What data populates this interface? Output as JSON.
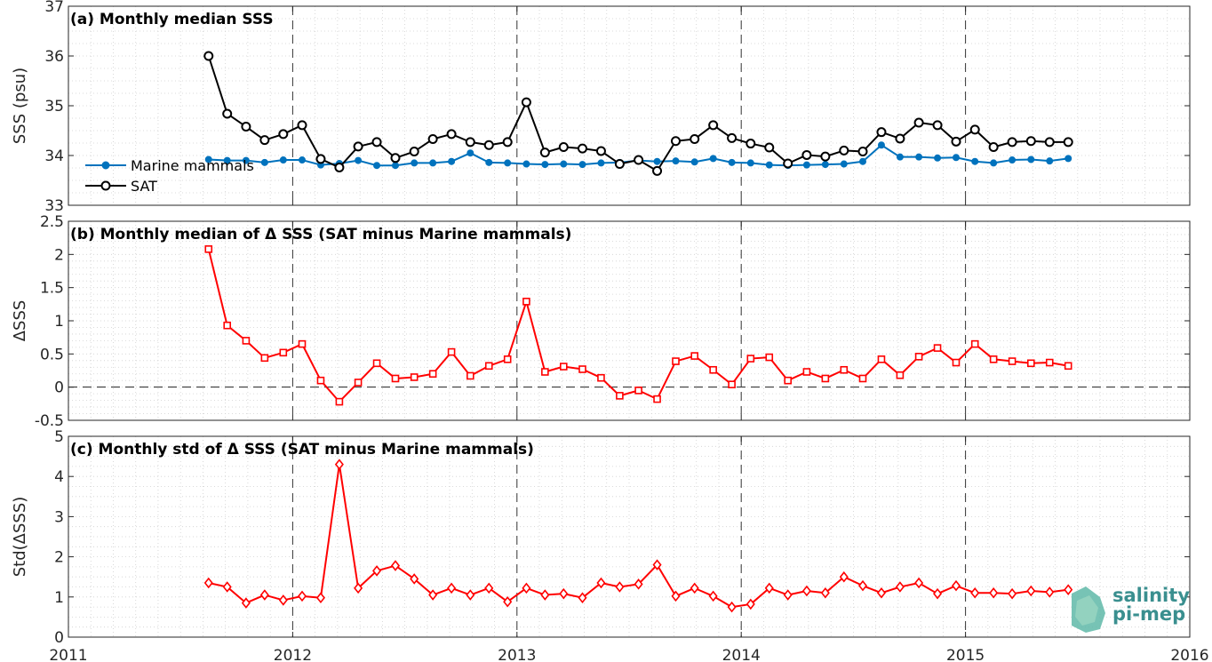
{
  "colors": {
    "marine": "#0072BD",
    "sat": "#000000",
    "delta": "#FF0000",
    "logo": "#3a8f8f"
  },
  "logo": {
    "line1": "salinity",
    "line2": "pi-mep"
  },
  "chart_data": [
    {
      "type": "line",
      "title": "(a) Monthly median SSS",
      "ylabel": "SSS (psu)",
      "xlim": [
        2011,
        2016
      ],
      "ylim": [
        33,
        37
      ],
      "xticks": [
        "2011",
        "2012",
        "2013",
        "2014",
        "2015",
        "2016"
      ],
      "yticks": [
        "33",
        "34",
        "35",
        "36",
        "37"
      ],
      "legend": "top-left",
      "grid": "dotted minor",
      "series": [
        {
          "name": "Marine mammals",
          "marker": "dot",
          "color": "#0072BD",
          "x": [
            2011.625,
            2011.708,
            2011.792,
            2011.875,
            2011.958,
            2012.042,
            2012.125,
            2012.208,
            2012.292,
            2012.375,
            2012.458,
            2012.542,
            2012.625,
            2012.708,
            2012.792,
            2012.875,
            2012.958,
            2013.042,
            2013.125,
            2013.208,
            2013.292,
            2013.375,
            2013.458,
            2013.542,
            2013.625,
            2013.708,
            2013.792,
            2013.875,
            2013.958,
            2014.042,
            2014.125,
            2014.208,
            2014.292,
            2014.375,
            2014.458,
            2014.542,
            2014.625,
            2014.708,
            2014.792,
            2014.875,
            2014.958,
            2015.042,
            2015.125,
            2015.208,
            2015.292,
            2015.375,
            2015.458
          ],
          "values": [
            33.92,
            33.9,
            33.9,
            33.86,
            33.91,
            33.91,
            33.81,
            33.84,
            33.9,
            33.8,
            33.8,
            33.85,
            33.85,
            33.88,
            34.05,
            33.86,
            33.85,
            33.83,
            33.82,
            33.83,
            33.82,
            33.85,
            33.86,
            33.9,
            33.88,
            33.89,
            33.87,
            33.94,
            33.86,
            33.85,
            33.81,
            33.8,
            33.81,
            33.82,
            33.83,
            33.88,
            34.21,
            33.97,
            33.97,
            33.95,
            33.96,
            33.88,
            33.85,
            33.91,
            33.92,
            33.89,
            33.94
          ]
        },
        {
          "name": "SAT",
          "marker": "circle",
          "color": "#000000",
          "x": [
            2011.625,
            2011.708,
            2011.792,
            2011.875,
            2011.958,
            2012.042,
            2012.125,
            2012.208,
            2012.292,
            2012.375,
            2012.458,
            2012.542,
            2012.625,
            2012.708,
            2012.792,
            2012.875,
            2012.958,
            2013.042,
            2013.125,
            2013.208,
            2013.292,
            2013.375,
            2013.458,
            2013.542,
            2013.625,
            2013.708,
            2013.792,
            2013.875,
            2013.958,
            2014.042,
            2014.125,
            2014.208,
            2014.292,
            2014.375,
            2014.458,
            2014.542,
            2014.625,
            2014.708,
            2014.792,
            2014.875,
            2014.958,
            2015.042,
            2015.125,
            2015.208,
            2015.292,
            2015.375,
            2015.458
          ],
          "values": [
            36.0,
            34.84,
            34.58,
            34.31,
            34.43,
            34.61,
            33.93,
            33.76,
            34.18,
            34.27,
            33.95,
            34.08,
            34.33,
            34.43,
            34.27,
            34.21,
            34.27,
            35.07,
            34.06,
            34.17,
            34.14,
            34.09,
            33.83,
            33.91,
            33.69,
            34.29,
            34.33,
            34.61,
            34.35,
            34.24,
            34.16,
            33.84,
            34.01,
            33.98,
            34.1,
            34.08,
            34.47,
            34.34,
            34.66,
            34.61,
            34.28,
            34.52,
            34.17,
            34.27,
            34.29,
            34.27,
            34.27
          ]
        }
      ]
    },
    {
      "type": "line",
      "title": "(b) Monthly median of Δ SSS (SAT minus Marine mammals)",
      "ylabel": "ΔSSS",
      "xlim": [
        2011,
        2016
      ],
      "ylim": [
        -0.5,
        2.5
      ],
      "xticks": [
        "2011",
        "2012",
        "2013",
        "2014",
        "2015",
        "2016"
      ],
      "yticks": [
        "-0.5",
        "0",
        "0.5",
        "1",
        "1.5",
        "2",
        "2.5"
      ],
      "reference_line": 0,
      "series": [
        {
          "marker": "square",
          "color": "#FF0000",
          "x": [
            2011.625,
            2011.708,
            2011.792,
            2011.875,
            2011.958,
            2012.042,
            2012.125,
            2012.208,
            2012.292,
            2012.375,
            2012.458,
            2012.542,
            2012.625,
            2012.708,
            2012.792,
            2012.875,
            2012.958,
            2013.042,
            2013.125,
            2013.208,
            2013.292,
            2013.375,
            2013.458,
            2013.542,
            2013.625,
            2013.708,
            2013.792,
            2013.875,
            2013.958,
            2014.042,
            2014.125,
            2014.208,
            2014.292,
            2014.375,
            2014.458,
            2014.542,
            2014.625,
            2014.708,
            2014.792,
            2014.875,
            2014.958,
            2015.042,
            2015.125,
            2015.208,
            2015.292,
            2015.375,
            2015.458
          ],
          "values": [
            2.08,
            0.93,
            0.7,
            0.44,
            0.52,
            0.65,
            0.1,
            -0.22,
            0.07,
            0.36,
            0.13,
            0.15,
            0.2,
            0.53,
            0.17,
            0.32,
            0.42,
            1.29,
            0.23,
            0.31,
            0.27,
            0.14,
            -0.13,
            -0.05,
            -0.18,
            0.39,
            0.47,
            0.26,
            0.04,
            0.43,
            0.45,
            0.1,
            0.23,
            0.13,
            0.26,
            0.13,
            0.42,
            0.18,
            0.46,
            0.59,
            0.37,
            0.65,
            0.42,
            0.39,
            0.36,
            0.37,
            0.32
          ]
        }
      ]
    },
    {
      "type": "line",
      "title": "(c) Monthly std of Δ SSS (SAT minus Marine mammals)",
      "ylabel": "Std(ΔSSS)",
      "xlim": [
        2011,
        2016
      ],
      "ylim": [
        0,
        5
      ],
      "xticks": [
        "2011",
        "2012",
        "2013",
        "2014",
        "2015",
        "2016"
      ],
      "yticks": [
        "0",
        "1",
        "2",
        "3",
        "4",
        "5"
      ],
      "series": [
        {
          "marker": "diamond",
          "color": "#FF0000",
          "x": [
            2011.625,
            2011.708,
            2011.792,
            2011.875,
            2011.958,
            2012.042,
            2012.125,
            2012.208,
            2012.292,
            2012.375,
            2012.458,
            2012.542,
            2012.625,
            2012.708,
            2012.792,
            2012.875,
            2012.958,
            2013.042,
            2013.125,
            2013.208,
            2013.292,
            2013.375,
            2013.458,
            2013.542,
            2013.625,
            2013.708,
            2013.792,
            2013.875,
            2013.958,
            2014.042,
            2014.125,
            2014.208,
            2014.292,
            2014.375,
            2014.458,
            2014.542,
            2014.625,
            2014.708,
            2014.792,
            2014.875,
            2014.958,
            2015.042,
            2015.125,
            2015.208,
            2015.292,
            2015.375,
            2015.458
          ],
          "values": [
            1.35,
            1.25,
            0.85,
            1.05,
            0.92,
            1.02,
            0.98,
            4.3,
            1.22,
            1.65,
            1.78,
            1.45,
            1.05,
            1.22,
            1.05,
            1.22,
            0.88,
            1.22,
            1.05,
            1.08,
            0.98,
            1.35,
            1.25,
            1.32,
            1.8,
            1.02,
            1.22,
            1.02,
            0.75,
            0.82,
            1.22,
            1.05,
            1.15,
            1.1,
            1.5,
            1.28,
            1.1,
            1.25,
            1.35,
            1.08,
            1.28,
            1.1,
            1.1,
            1.08,
            1.15,
            1.12,
            1.18
          ]
        }
      ]
    }
  ]
}
